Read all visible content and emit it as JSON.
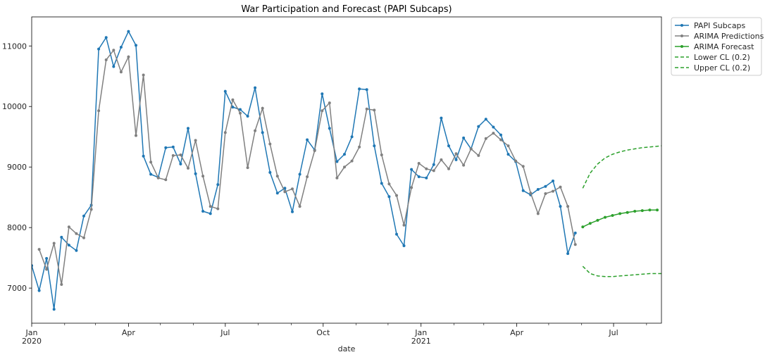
{
  "chart_data": {
    "type": "line",
    "title": "War Participation and Forecast (PAPI Subcaps)",
    "xlabel": "date",
    "ylabel": "",
    "x_range": [
      "2020-01-01",
      "2021-08-15"
    ],
    "ylim": [
      6420,
      11480
    ],
    "y_ticks": [
      7000,
      8000,
      9000,
      10000,
      11000
    ],
    "x_major_ticks": [
      {
        "date": "2020-01-01",
        "label": "Jan",
        "sublabel": "2020"
      },
      {
        "date": "2020-04-01",
        "label": "Apr",
        "sublabel": ""
      },
      {
        "date": "2020-07-01",
        "label": "Jul",
        "sublabel": ""
      },
      {
        "date": "2020-10-01",
        "label": "Oct",
        "sublabel": ""
      },
      {
        "date": "2021-01-01",
        "label": "Jan",
        "sublabel": "2021"
      },
      {
        "date": "2021-04-01",
        "label": "Apr",
        "sublabel": ""
      },
      {
        "date": "2021-07-01",
        "label": "Jul",
        "sublabel": ""
      }
    ],
    "x_minor_ticks": [
      "2020-02-01",
      "2020-03-01",
      "2020-05-01",
      "2020-06-01",
      "2020-08-01",
      "2020-09-01",
      "2020-11-01",
      "2020-12-01",
      "2021-02-01",
      "2021-03-01",
      "2021-05-01",
      "2021-06-01",
      "2021-08-01"
    ],
    "grid": false,
    "legend_position": "outside-top-right",
    "series": [
      {
        "name": "PAPI Subcaps",
        "color": "#1f77b4",
        "style": "solid-dots",
        "x": [
          "2020-01-01",
          "2020-01-08",
          "2020-01-15",
          "2020-01-22",
          "2020-01-29",
          "2020-02-05",
          "2020-02-12",
          "2020-02-19",
          "2020-02-26",
          "2020-03-04",
          "2020-03-11",
          "2020-03-18",
          "2020-03-25",
          "2020-04-01",
          "2020-04-08",
          "2020-04-15",
          "2020-04-22",
          "2020-04-29",
          "2020-05-06",
          "2020-05-13",
          "2020-05-20",
          "2020-05-27",
          "2020-06-03",
          "2020-06-10",
          "2020-06-17",
          "2020-06-24",
          "2020-07-01",
          "2020-07-08",
          "2020-07-15",
          "2020-07-22",
          "2020-07-29",
          "2020-08-05",
          "2020-08-12",
          "2020-08-19",
          "2020-08-26",
          "2020-09-02",
          "2020-09-09",
          "2020-09-16",
          "2020-09-23",
          "2020-09-30",
          "2020-10-07",
          "2020-10-14",
          "2020-10-21",
          "2020-10-28",
          "2020-11-04",
          "2020-11-11",
          "2020-11-18",
          "2020-11-25",
          "2020-12-02",
          "2020-12-09",
          "2020-12-16",
          "2020-12-23",
          "2020-12-30",
          "2021-01-06",
          "2021-01-13",
          "2021-01-20",
          "2021-01-27",
          "2021-02-03",
          "2021-02-10",
          "2021-02-17",
          "2021-02-24",
          "2021-03-03",
          "2021-03-10",
          "2021-03-17",
          "2021-03-24",
          "2021-03-31",
          "2021-04-07",
          "2021-04-14",
          "2021-04-21",
          "2021-04-28",
          "2021-05-05",
          "2021-05-12",
          "2021-05-19",
          "2021-05-26"
        ],
        "y": [
          7370,
          6960,
          7490,
          6650,
          7840,
          7710,
          7620,
          8190,
          8370,
          10950,
          11140,
          10660,
          10980,
          11240,
          11010,
          9180,
          8880,
          8830,
          9320,
          9330,
          9050,
          9640,
          8890,
          8270,
          8230,
          8710,
          10250,
          9990,
          9950,
          9840,
          10310,
          9570,
          8910,
          8570,
          8650,
          8260,
          8880,
          9450,
          9280,
          10210,
          9640,
          9090,
          9210,
          9500,
          10290,
          10280,
          9350,
          8730,
          8510,
          7890,
          7700,
          8960,
          8840,
          8820,
          9040,
          9810,
          9350,
          9120,
          9480,
          9300,
          9670,
          9790,
          9660,
          9530,
          9210,
          9090,
          8610,
          8540,
          8630,
          8680,
          8770,
          8350,
          7570,
          7910
        ]
      },
      {
        "name": "ARIMA Predictions",
        "color": "#808080",
        "style": "solid-dots",
        "x": [
          "2020-01-08",
          "2020-01-15",
          "2020-01-22",
          "2020-01-29",
          "2020-02-05",
          "2020-02-12",
          "2020-02-19",
          "2020-02-26",
          "2020-03-04",
          "2020-03-11",
          "2020-03-18",
          "2020-03-25",
          "2020-04-01",
          "2020-04-08",
          "2020-04-15",
          "2020-04-22",
          "2020-04-29",
          "2020-05-06",
          "2020-05-13",
          "2020-05-20",
          "2020-05-27",
          "2020-06-03",
          "2020-06-10",
          "2020-06-17",
          "2020-06-24",
          "2020-07-01",
          "2020-07-08",
          "2020-07-15",
          "2020-07-22",
          "2020-07-29",
          "2020-08-05",
          "2020-08-12",
          "2020-08-19",
          "2020-08-26",
          "2020-09-02",
          "2020-09-09",
          "2020-09-16",
          "2020-09-23",
          "2020-09-30",
          "2020-10-07",
          "2020-10-14",
          "2020-10-21",
          "2020-10-28",
          "2020-11-04",
          "2020-11-11",
          "2020-11-18",
          "2020-11-25",
          "2020-12-02",
          "2020-12-09",
          "2020-12-16",
          "2020-12-23",
          "2020-12-30",
          "2021-01-06",
          "2021-01-13",
          "2021-01-20",
          "2021-01-27",
          "2021-02-03",
          "2021-02-10",
          "2021-02-17",
          "2021-02-24",
          "2021-03-03",
          "2021-03-10",
          "2021-03-17",
          "2021-03-24",
          "2021-03-31",
          "2021-04-07",
          "2021-04-14",
          "2021-04-21",
          "2021-04-28",
          "2021-05-05",
          "2021-05-12",
          "2021-05-19",
          "2021-05-26"
        ],
        "y": [
          7640,
          7310,
          7740,
          7060,
          8010,
          7900,
          7830,
          8300,
          9930,
          10770,
          10930,
          10570,
          10820,
          9520,
          10520,
          9080,
          8820,
          8790,
          9190,
          9200,
          8980,
          9440,
          8850,
          8350,
          8310,
          9570,
          10110,
          9890,
          8990,
          9600,
          9970,
          9380,
          8850,
          8590,
          8640,
          8350,
          8840,
          9270,
          9930,
          10060,
          8820,
          9000,
          9100,
          9330,
          9960,
          9940,
          9200,
          8720,
          8530,
          8040,
          8660,
          9060,
          8970,
          8940,
          9120,
          8970,
          9220,
          9030,
          9300,
          9190,
          9470,
          9560,
          9450,
          9350,
          9100,
          9010,
          8570,
          8230,
          8560,
          8600,
          8670,
          8350,
          7720
        ]
      },
      {
        "name": "ARIMA Forecast",
        "color": "#2ca02c",
        "style": "solid-dots",
        "x": [
          "2021-06-02",
          "2021-06-09",
          "2021-06-16",
          "2021-06-23",
          "2021-06-30",
          "2021-07-07",
          "2021-07-14",
          "2021-07-21",
          "2021-07-28",
          "2021-08-04",
          "2021-08-11"
        ],
        "y": [
          8010,
          8070,
          8120,
          8170,
          8200,
          8230,
          8250,
          8270,
          8280,
          8290,
          8290
        ]
      },
      {
        "name": "Lower CL (0.2)",
        "color": "#2ca02c",
        "style": "dashed",
        "x": [
          "2021-06-02",
          "2021-06-09",
          "2021-06-16",
          "2021-06-23",
          "2021-06-30",
          "2021-07-07",
          "2021-07-14",
          "2021-07-21",
          "2021-07-28",
          "2021-08-04",
          "2021-08-15"
        ],
        "y": [
          8650,
          8900,
          9050,
          9150,
          9210,
          9250,
          9280,
          9300,
          9320,
          9330,
          9350
        ]
      },
      {
        "name": "Upper CL (0.2)",
        "color": "#2ca02c",
        "style": "dashed",
        "x": [
          "2021-06-02",
          "2021-06-09",
          "2021-06-16",
          "2021-06-23",
          "2021-06-30",
          "2021-07-07",
          "2021-07-14",
          "2021-07-21",
          "2021-07-28",
          "2021-08-04",
          "2021-08-15"
        ],
        "y": [
          7360,
          7240,
          7200,
          7190,
          7190,
          7200,
          7210,
          7220,
          7230,
          7240,
          7240
        ]
      }
    ]
  }
}
